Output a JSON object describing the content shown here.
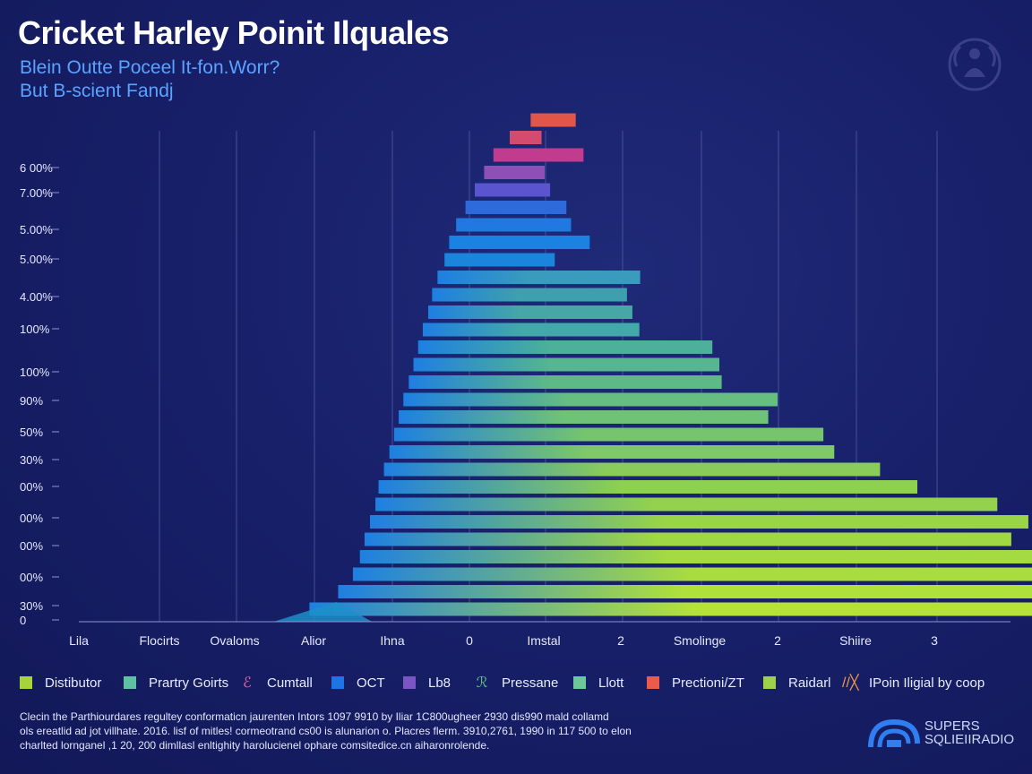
{
  "header": {
    "title": "Cricket Harley Poinit Ilquales",
    "subtitle_line1": "Blein Outte Poceel It-fon.Worr?",
    "subtitle_line2": "But B-scient Fandj"
  },
  "chart_data": {
    "type": "bar",
    "orientation": "horizontal-stacked-pyramid",
    "grid": true,
    "y_tick_labels": [
      "6 00%",
      "7.00%",
      "5.00%",
      "5.00%",
      "4.00%",
      "100%",
      "100%",
      "90%",
      "50%",
      "30%",
      "00%",
      "00%",
      "00%",
      "00%",
      "30%",
      "0"
    ],
    "x_tick_labels": [
      "Lila",
      "Flocirts",
      "Ovaloms",
      "Alior",
      "Ihna",
      "0",
      "Imstal",
      "2",
      "Smolinge",
      "2",
      "Shiire",
      "3"
    ],
    "bars": [
      {
        "start": 5.82,
        "end": 6.4
      },
      {
        "start": 5.55,
        "end": 5.96
      },
      {
        "start": 5.34,
        "end": 6.5
      },
      {
        "start": 5.22,
        "end": 6.0
      },
      {
        "start": 5.1,
        "end": 6.07
      },
      {
        "start": 4.98,
        "end": 6.28
      },
      {
        "start": 4.86,
        "end": 6.34
      },
      {
        "start": 4.77,
        "end": 6.58
      },
      {
        "start": 4.71,
        "end": 6.13
      },
      {
        "start": 4.62,
        "end": 7.23
      },
      {
        "start": 4.55,
        "end": 7.06
      },
      {
        "start": 4.5,
        "end": 7.13
      },
      {
        "start": 4.43,
        "end": 7.22
      },
      {
        "start": 4.37,
        "end": 8.16
      },
      {
        "start": 4.31,
        "end": 8.25
      },
      {
        "start": 4.25,
        "end": 8.28
      },
      {
        "start": 4.18,
        "end": 9.0
      },
      {
        "start": 4.12,
        "end": 8.88
      },
      {
        "start": 4.06,
        "end": 9.59
      },
      {
        "start": 4.0,
        "end": 9.73
      },
      {
        "start": 3.93,
        "end": 10.32
      },
      {
        "start": 3.86,
        "end": 10.8
      },
      {
        "start": 3.82,
        "end": 11.83
      },
      {
        "start": 3.75,
        "end": 12.23
      },
      {
        "start": 3.68,
        "end": 12.01
      },
      {
        "start": 3.62,
        "end": 12.42
      },
      {
        "start": 3.53,
        "end": 13.21
      },
      {
        "start": 3.34,
        "end": 13.22
      },
      {
        "start": 2.97,
        "end": 14.06
      }
    ],
    "bar_colors": [
      "#e2564a",
      "#d34b6e",
      "#c13c8f",
      "#8e4fb7",
      "#5a55cf",
      "#2e6ad9",
      "#2178e0",
      "#1a82e0",
      "#1b84dc",
      "#3a9bbd",
      "#3fa0ad",
      "#46a7a6",
      "#43a8a9",
      "#4cb09a",
      "#55b690",
      "#5cba86",
      "#66bf80",
      "#6fc378",
      "#76c56e",
      "#7fca66",
      "#8acc5a",
      "#8ed052",
      "#94d24d",
      "#9ad548",
      "#a0d744",
      "#a4da42",
      "#a9dc3f",
      "#b0e03a",
      "#b6e238"
    ]
  },
  "legend": [
    {
      "label": "Distibutor",
      "marker": "square",
      "color": "#a6d43a"
    },
    {
      "label": "Prartry Goirts",
      "marker": "square",
      "color": "#5ec2a2"
    },
    {
      "label": "Cumtall",
      "marker": "glyph",
      "glyph": "ℰ",
      "color": "#e96aa8"
    },
    {
      "label": "OCT",
      "marker": "square",
      "color": "#1f74e4"
    },
    {
      "label": "Lb8",
      "marker": "square",
      "color": "#7b55c4"
    },
    {
      "label": "Pressane",
      "marker": "glyph",
      "glyph": "ℛ",
      "color": "#5ec28a"
    },
    {
      "label": "Llott",
      "marker": "square",
      "color": "#6cc79a"
    },
    {
      "label": "Prectioni/ZT",
      "marker": "square",
      "color": "#ea5b4a"
    },
    {
      "label": "Raidarl",
      "marker": "square",
      "color": "#9ed14a"
    },
    {
      "label": "IPoin Iligial by coop",
      "marker": "glyph",
      "glyph": "//╳",
      "color": "#f09a4a"
    }
  ],
  "caption": {
    "line1": "Clecin the Parthiourdares regultey conformaticn jaurenten Intors 1097 9910 by Iliar 1C800ugheer 2930 dis990 mald collamd",
    "line2": "ols ereatlid ad jot villhate. 2016. lisf of mitles! cormeotrand cs00 is alunarion o. Placres flerm. 3910,2761, 1990 in 117 500 to elon",
    "line3": "charlted lornganel ,1 20, 200 dimllasl enltighity harolucienel ophare comsitedice.cn aiharonrolende."
  },
  "brand": {
    "line1": "SUPERS",
    "line2": "SQLIEIIRADIO",
    "accent_color": "#2f7ff0"
  }
}
